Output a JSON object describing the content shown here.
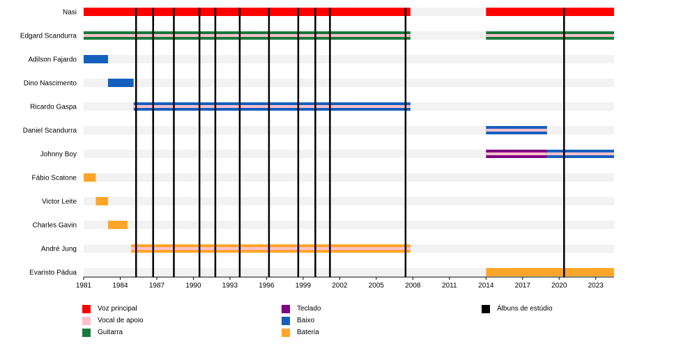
{
  "chart_data": {
    "type": "timeline",
    "members": [
      {
        "name": "Nasi",
        "spans": [
          {
            "start": 1981.0,
            "end": 2007.8,
            "role": "voz_principal"
          },
          {
            "start": 2014.0,
            "end": 2024.5,
            "role": "voz_principal"
          }
        ]
      },
      {
        "name": "Edgard Scandurra",
        "spans": [
          {
            "start": 1981.0,
            "end": 2007.8,
            "role": "guitarra",
            "secondary": "vocal_de_apoio"
          },
          {
            "start": 2014.0,
            "end": 2024.5,
            "role": "guitarra",
            "secondary": "vocal_de_apoio"
          }
        ]
      },
      {
        "name": "Adilson Fajardo",
        "spans": [
          {
            "start": 1981.0,
            "end": 1983.0,
            "role": "baixo"
          }
        ]
      },
      {
        "name": "Dino Nascimento",
        "spans": [
          {
            "start": 1983.0,
            "end": 1985.1,
            "role": "baixo"
          }
        ]
      },
      {
        "name": "Ricardo Gaspa",
        "spans": [
          {
            "start": 1985.1,
            "end": 2007.8,
            "role": "baixo",
            "secondary": "vocal_de_apoio"
          }
        ]
      },
      {
        "name": "Daniel Scandurra",
        "spans": [
          {
            "start": 2014.0,
            "end": 2019.0,
            "role": "baixo",
            "secondary": "vocal_de_apoio"
          }
        ]
      },
      {
        "name": "Johnny Boy",
        "spans": [
          {
            "start": 2014.0,
            "end": 2019.0,
            "role": "teclado",
            "secondary": "vocal_de_apoio"
          },
          {
            "start": 2019.0,
            "end": 2024.5,
            "role": "baixo",
            "secondary": "vocal_de_apoio"
          }
        ]
      },
      {
        "name": "Fábio Scatone",
        "spans": [
          {
            "start": 1981.0,
            "end": 1982.0,
            "role": "bateria"
          }
        ]
      },
      {
        "name": "Victor Leite",
        "spans": [
          {
            "start": 1982.0,
            "end": 1983.0,
            "role": "bateria"
          }
        ]
      },
      {
        "name": "Charles Gavin",
        "spans": [
          {
            "start": 1983.0,
            "end": 1984.6,
            "role": "bateria"
          }
        ]
      },
      {
        "name": "André Jung",
        "spans": [
          {
            "start": 1984.9,
            "end": 2007.8,
            "role": "bateria",
            "secondary": "vocal_de_apoio"
          }
        ]
      },
      {
        "name": "Evaristo Pádua",
        "spans": [
          {
            "start": 2014.0,
            "end": 2024.5,
            "role": "bateria"
          }
        ]
      }
    ],
    "albums": [
      1985.3,
      1986.7,
      1988.4,
      1990.5,
      1991.8,
      1993.8,
      1996.2,
      1998.6,
      2000.0,
      2001.2,
      2007.4,
      2020.4
    ],
    "x_ticks": [
      "1981",
      "1984",
      "1987",
      "1990",
      "1993",
      "1996",
      "1999",
      "2002",
      "2005",
      "2008",
      "2011",
      "2014",
      "2017",
      "2020",
      "2023"
    ],
    "x_range": [
      1981,
      2024.5
    ],
    "legend": [
      {
        "key": "voz_principal",
        "label": "Voz principal",
        "color": "#ff0000"
      },
      {
        "key": "vocal_de_apoio",
        "label": "Vocal de apoio",
        "color": "#ffc0cb"
      },
      {
        "key": "guitarra",
        "label": "Guitarra",
        "color": "#167a3a"
      },
      {
        "key": "teclado",
        "label": "Teclado",
        "color": "#800080"
      },
      {
        "key": "baixo",
        "label": "Baixo",
        "color": "#1560bd"
      },
      {
        "key": "bateria",
        "label": "Bateria",
        "color": "#ffa529"
      },
      {
        "key": "albuns",
        "label": "Álbuns de estúdio",
        "color": "#000000"
      }
    ]
  },
  "colors": {
    "row_background": "#f2f2f2",
    "album_line": "#000000"
  }
}
